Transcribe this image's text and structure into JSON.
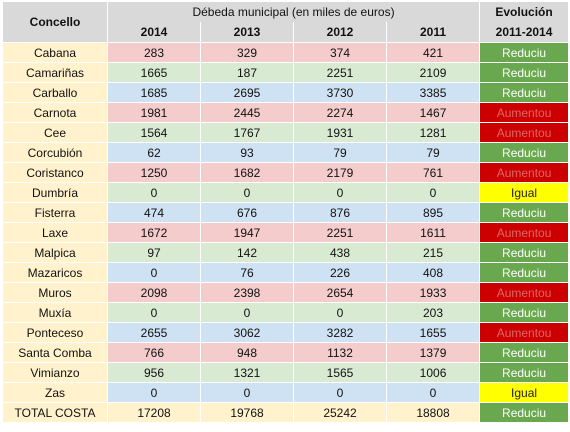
{
  "header": {
    "concello": "Concello",
    "span_title": "Débeda municipal (en miles de euros)",
    "evolution_line1": "Evolución",
    "evolution_line2": "2011-2014",
    "years": [
      "2014",
      "2013",
      "2012",
      "2011"
    ]
  },
  "rows": [
    {
      "name": "Cabana",
      "values": [
        "283",
        "329",
        "374",
        "421"
      ],
      "evolution": "Reduciu",
      "band": "pink",
      "evo": "reduciu"
    },
    {
      "name": "Camariñas",
      "values": [
        "1665",
        "187",
        "2251",
        "2109"
      ],
      "evolution": "Reduciu",
      "band": "green",
      "evo": "reduciu"
    },
    {
      "name": "Carballo",
      "values": [
        "1685",
        "2695",
        "3730",
        "3385"
      ],
      "evolution": "Reduciu",
      "band": "blue",
      "evo": "reduciu"
    },
    {
      "name": "Carnota",
      "values": [
        "1981",
        "2445",
        "2274",
        "1467"
      ],
      "evolution": "Aumentou",
      "band": "pink",
      "evo": "aumentou"
    },
    {
      "name": "Cee",
      "values": [
        "1564",
        "1767",
        "1931",
        "1281"
      ],
      "evolution": "Aumentou",
      "band": "green",
      "evo": "aumentou"
    },
    {
      "name": "Corcubión",
      "values": [
        "62",
        "93",
        "79",
        "79"
      ],
      "evolution": "Reduciu",
      "band": "blue",
      "evo": "reduciu"
    },
    {
      "name": "Coristanco",
      "values": [
        "1250",
        "1682",
        "2179",
        "761"
      ],
      "evolution": "Aumentou",
      "band": "pink",
      "evo": "aumentou"
    },
    {
      "name": "Dumbría",
      "values": [
        "0",
        "0",
        "0",
        "0"
      ],
      "evolution": "Igual",
      "band": "green",
      "evo": "igual"
    },
    {
      "name": "Fisterra",
      "values": [
        "474",
        "676",
        "876",
        "895"
      ],
      "evolution": "Reduciu",
      "band": "blue",
      "evo": "reduciu"
    },
    {
      "name": "Laxe",
      "values": [
        "1672",
        "1947",
        "2251",
        "1611"
      ],
      "evolution": "Aumentou",
      "band": "pink",
      "evo": "aumentou"
    },
    {
      "name": "Malpica",
      "values": [
        "97",
        "142",
        "438",
        "215"
      ],
      "evolution": "Reduciu",
      "band": "green",
      "evo": "reduciu"
    },
    {
      "name": "Mazaricos",
      "values": [
        "0",
        "76",
        "226",
        "408"
      ],
      "evolution": "Reduciu",
      "band": "blue",
      "evo": "reduciu"
    },
    {
      "name": "Muros",
      "values": [
        "2098",
        "2398",
        "2654",
        "1933"
      ],
      "evolution": "Aumentou",
      "band": "pink",
      "evo": "aumentou"
    },
    {
      "name": "Muxía",
      "values": [
        "0",
        "0",
        "0",
        "203"
      ],
      "evolution": "Reduciu",
      "band": "green",
      "evo": "reduciu"
    },
    {
      "name": "Ponteceso",
      "values": [
        "2655",
        "3062",
        "3282",
        "1655"
      ],
      "evolution": "Aumentou",
      "band": "blue",
      "evo": "aumentou"
    },
    {
      "name": "Santa Comba",
      "values": [
        "766",
        "948",
        "1132",
        "1379"
      ],
      "evolution": "Reduciu",
      "band": "pink",
      "evo": "reduciu"
    },
    {
      "name": "Vimianzo",
      "values": [
        "956",
        "1321",
        "1565",
        "1006"
      ],
      "evolution": "Reduciu",
      "band": "green",
      "evo": "reduciu"
    },
    {
      "name": "Zas",
      "values": [
        "0",
        "0",
        "0",
        "0"
      ],
      "evolution": "Igual",
      "band": "blue",
      "evo": "igual"
    },
    {
      "name": "TOTAL COSTA",
      "values": [
        "17208",
        "19768",
        "25242",
        "18808"
      ],
      "evolution": "Reduciu",
      "band": "total",
      "evo": "reduciu"
    }
  ],
  "colors": {
    "header_gray": "#d9d9d9",
    "name_cell": "#fff2cc",
    "band_pink": "#f4cccc",
    "band_green": "#d9ead3",
    "band_blue": "#cfe2f3",
    "evo_reduciu": "#6aa84f",
    "evo_aumentou": "#cc0000",
    "evo_igual": "#ffff00"
  }
}
